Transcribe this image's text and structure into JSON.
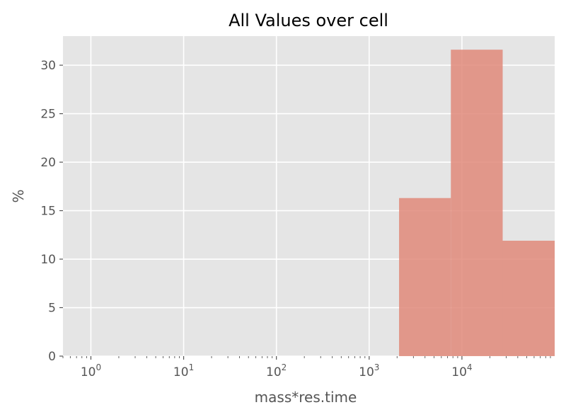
{
  "chart_data": {
    "type": "bar",
    "title": "All Values over cell",
    "xlabel": "mass*res.time",
    "ylabel": "%",
    "x_scale": "log",
    "xlim": [
      0.5,
      100000
    ],
    "ylim": [
      0,
      33
    ],
    "grid": true,
    "background": "#e5e5e5",
    "grid_color": "#ffffff",
    "bar_color": "#e1897a",
    "x_ticks": [
      {
        "value": 1,
        "base": "10",
        "exp": "0"
      },
      {
        "value": 10,
        "base": "10",
        "exp": "1"
      },
      {
        "value": 100,
        "base": "10",
        "exp": "2"
      },
      {
        "value": 1000,
        "base": "10",
        "exp": "3"
      },
      {
        "value": 10000,
        "base": "10",
        "exp": "4"
      }
    ],
    "y_ticks": [
      {
        "value": 0,
        "label": "0"
      },
      {
        "value": 5,
        "label": "5"
      },
      {
        "value": 10,
        "label": "10"
      },
      {
        "value": 15,
        "label": "15"
      },
      {
        "value": 20,
        "label": "20"
      },
      {
        "value": 25,
        "label": "25"
      },
      {
        "value": 30,
        "label": "30"
      }
    ],
    "bins": [
      {
        "x0": 2100,
        "x1": 7600,
        "value": 16.3
      },
      {
        "x0": 7600,
        "x1": 27500,
        "value": 31.6
      },
      {
        "x0": 27500,
        "x1": 100000,
        "value": 11.9
      }
    ]
  }
}
